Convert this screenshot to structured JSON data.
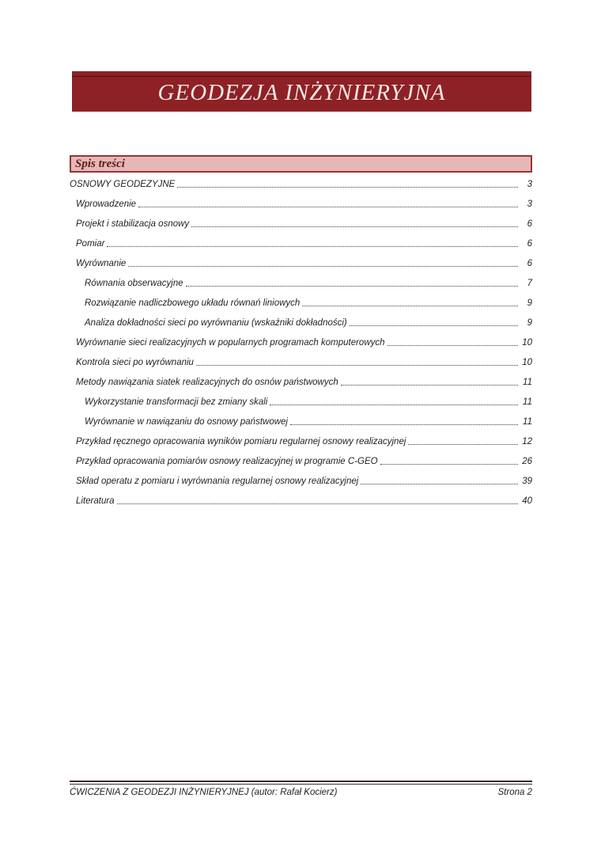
{
  "header": {
    "title": "GEODEZJA INŻYNIERYJNA"
  },
  "toc": {
    "heading": "Spis treści",
    "entries": [
      {
        "label": "OSNOWY GEODEZYJNE",
        "page": "3",
        "level": 0
      },
      {
        "label": "Wprowadzenie",
        "page": "3",
        "level": 1
      },
      {
        "label": "Projekt i stabilizacja osnowy",
        "page": "6",
        "level": 1
      },
      {
        "label": "Pomiar",
        "page": "6",
        "level": 1
      },
      {
        "label": "Wyrównanie",
        "page": "6",
        "level": 1
      },
      {
        "label": "Równania obserwacyjne",
        "page": "7",
        "level": 2
      },
      {
        "label": "Rozwiązanie nadliczbowego układu równań liniowych",
        "page": "9",
        "level": 2
      },
      {
        "label": "Analiza dokładności sieci po wyrównaniu (wskaźniki dokładności)",
        "page": "9",
        "level": 2
      },
      {
        "label": "Wyrównanie sieci realizacyjnych w popularnych programach komputerowych",
        "page": "10",
        "level": 1
      },
      {
        "label": "Kontrola sieci po wyrównaniu",
        "page": "10",
        "level": 1
      },
      {
        "label": "Metody nawiązania siatek realizacyjnych do osnów państwowych",
        "page": "11",
        "level": 1
      },
      {
        "label": "Wykorzystanie transformacji bez zmiany skali",
        "page": "11",
        "level": 2
      },
      {
        "label": "Wyrównanie w nawiązaniu do osnowy państwowej",
        "page": "11",
        "level": 2
      },
      {
        "label": "Przykład ręcznego opracowania wyników pomiaru regularnej osnowy realizacyjnej",
        "page": "12",
        "level": 1
      },
      {
        "label": "Przykład opracowania pomiarów osnowy realizacyjnej w programie C-GEO",
        "page": "26",
        "level": 1
      },
      {
        "label": "Skład operatu z pomiaru i wyrównania regularnej osnowy realizacyjnej",
        "page": "39",
        "level": 1
      },
      {
        "label": "Literatura",
        "page": "40",
        "level": 1
      }
    ]
  },
  "footer": {
    "left": "ĆWICZENIA Z GEODEZJI INŻYNIERYJNEJ (autor: Rafał Kocierz)",
    "right": "Strona 2"
  },
  "colors": {
    "banner-bg": "#8d2126",
    "banner-line": "#4c1013",
    "banner-text": "#f4e8e4",
    "box-bg": "#e5b8b7",
    "box-border": "#943634",
    "heading-text": "#5e1a18",
    "toc-text": "#1f1f1f",
    "leader-color": "#3c3c3c",
    "rule-color": "#3a2828"
  }
}
